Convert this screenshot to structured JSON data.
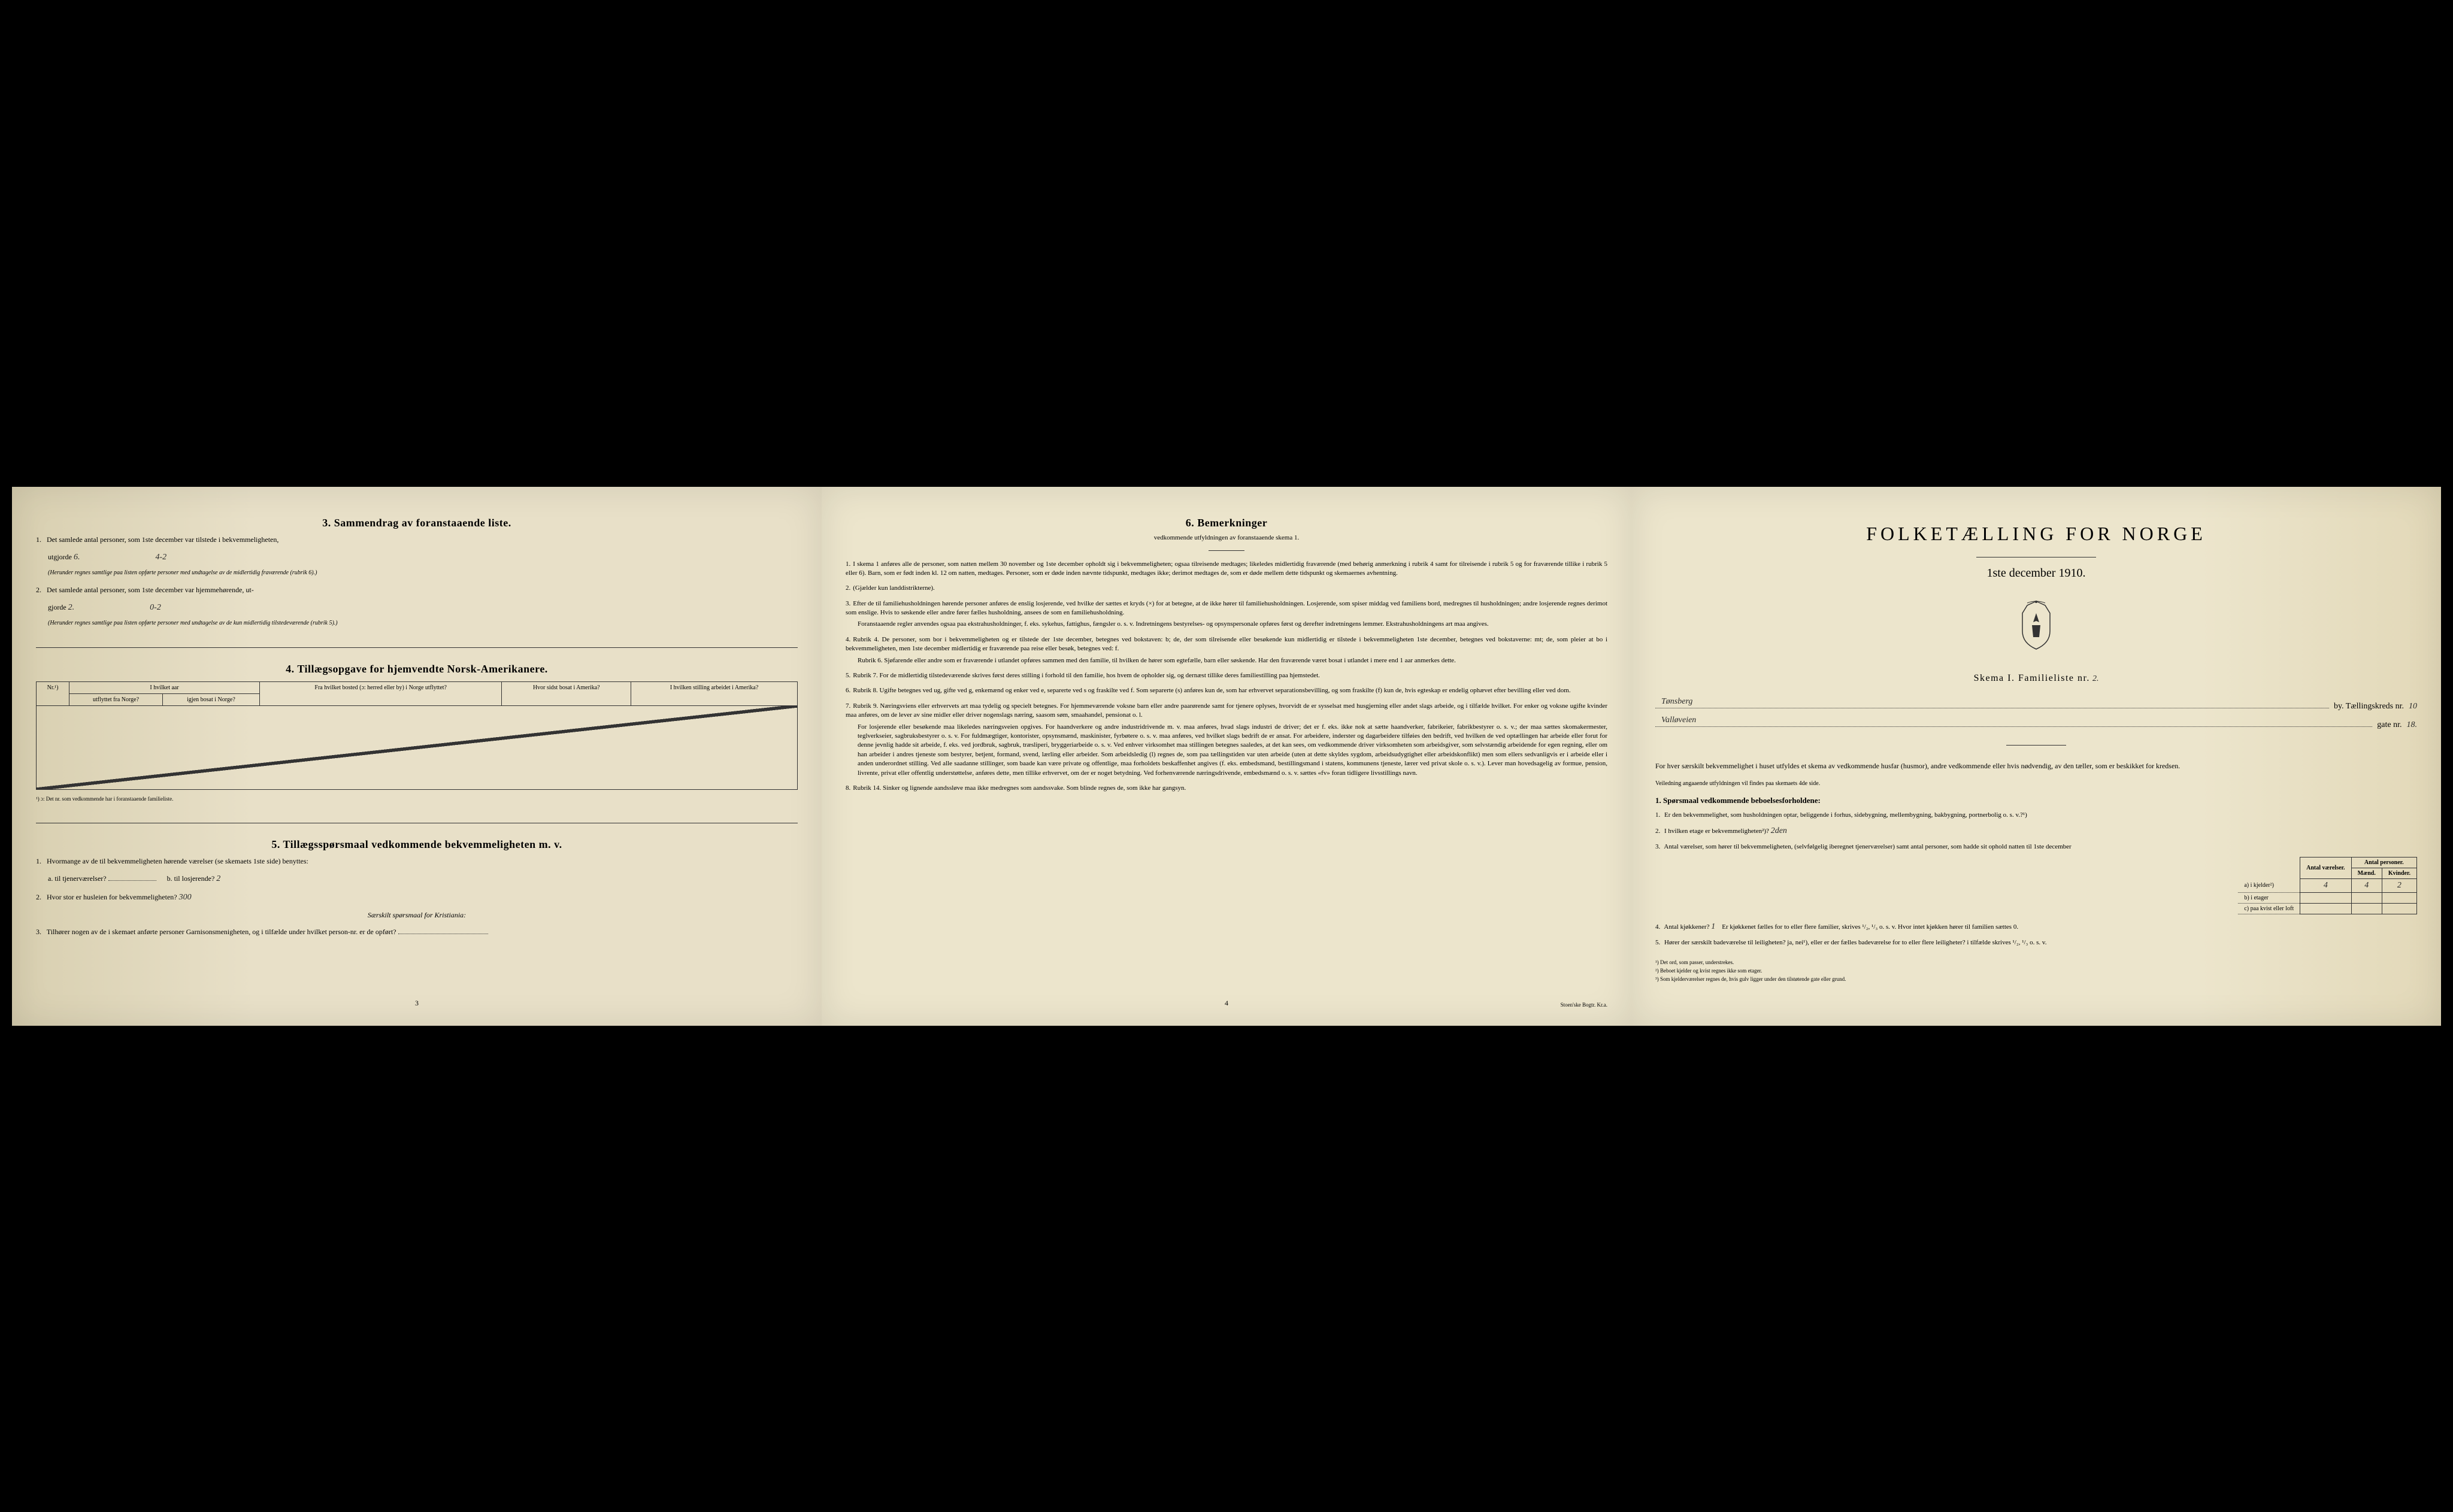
{
  "page1": {
    "section3": {
      "title": "3.   Sammendrag av foranstaaende liste.",
      "item1_text": "Det samlede antal personer, som 1ste december var tilstede i bekvemmeligheten,",
      "item1_utgjorde": "utgjorde",
      "item1_hw1": "6.",
      "item1_hw2": "4-2",
      "item1_note": "(Herunder regnes samtlige paa listen opførte personer med undtagelse av de midlertidig fraværende (rubrik 6).)",
      "item2_text": "Det samlede antal personer, som 1ste december var hjemmehørende, ut-",
      "item2_gjorde": "gjorde",
      "item2_hw1": "2.",
      "item2_hw2": "0-2",
      "item2_note": "(Herunder regnes samtlige paa listen opførte personer med undtagelse av de kun midlertidig tilstedeværende (rubrik 5).)"
    },
    "section4": {
      "title": "4.   Tillægsopgave for hjemvendte Norsk-Amerikanere.",
      "headers": {
        "nr": "Nr.¹)",
        "h1a": "I hvilket aar",
        "h1b": "utflyttet fra Norge?",
        "h1c": "igjen bosat i Norge?",
        "h2a": "Fra hvilket bosted (ɔ: herred eller by) i Norge utflyttet?",
        "h3a": "Hvor sidst bosat i Amerika?",
        "h4a": "I hvilken stilling arbeidet i Amerika?"
      },
      "footnote": "¹) ɔ: Det nr. som vedkommende har i foranstaaende familieliste."
    },
    "section5": {
      "title": "5.   Tillægsspørsmaal vedkommende bekvemmeligheten m. v.",
      "q1": "Hvormange av de til bekvemmeligheten hørende værelser (se skemaets 1ste side) benyttes:",
      "q1a": "a. til tjenerværelser?",
      "q1b": "b. til losjerende?",
      "q1b_hw": "2",
      "q2": "Hvor stor er husleien for bekvemmeligheten?",
      "q2_hw": "300",
      "q_kristiania": "Særskilt spørsmaal for Kristiania:",
      "q3": "Tilhører nogen av de i skemaet anførte personer Garnisonsmenigheten, og i tilfælde under hvilket person-nr. er de opført?"
    },
    "page_number": "3"
  },
  "page2": {
    "title": "6.   Bemerkninger",
    "subtitle": "vedkommende utfyldningen av foranstaaende skema 1.",
    "items": [
      {
        "num": "1.",
        "text": "I skema 1 anføres alle de personer, som natten mellem 30 november og 1ste december opholdt sig i bekvemmeligheten; ogsaa tilreisende medtages; likeledes midlertidig fraværende (med behørig anmerkning i rubrik 4 samt for tilreisende i rubrik 5 og for fraværende tillike i rubrik 5 eller 6). Barn, som er født inden kl. 12 om natten, medtages. Personer, som er døde inden nævnte tidspunkt, medtages ikke; derimot medtages de, som er døde mellem dette tidspunkt og skemaernes avhentning."
      },
      {
        "num": "2.",
        "text": "(Gjælder kun landdistrikterne)."
      },
      {
        "num": "3.",
        "text": "Efter de til familiehusholdningen hørende personer anføres de enslig losjerende, ved hvilke der sættes et kryds (×) for at betegne, at de ikke hører til familiehusholdningen. Losjerende, som spiser middag ved familiens bord, medregnes til husholdningen; andre losjerende regnes derimot som enslige. Hvis to søskende eller andre fører fælles husholdning, ansees de som en familiehusholdning.",
        "sub": "Foranstaaende regler anvendes ogsaa paa ekstrahusholdninger, f. eks. sykehus, fattighus, fængsler o. s. v. Indretningens bestyrelses- og opsynspersonale opføres først og derefter indretningens lemmer. Ekstrahusholdningens art maa angives."
      },
      {
        "num": "4.",
        "text": "Rubrik 4. De personer, som bor i bekvemmeligheten og er tilstede der 1ste december, betegnes ved bokstaven: b; de, der som tilreisende eller besøkende kun midlertidig er tilstede i bekvemmeligheten 1ste december, betegnes ved bokstaverne: mt; de, som pleier at bo i bekvemmeligheten, men 1ste december midlertidig er fraværende paa reise eller besøk, betegnes ved: f.",
        "sub": "Rubrik 6. Sjøfarende eller andre som er fraværende i utlandet opføres sammen med den familie, til hvilken de hører som egtefælle, barn eller søskende. Har den fraværende været bosat i utlandet i mere end 1 aar anmerkes dette."
      },
      {
        "num": "5.",
        "text": "Rubrik 7. For de midlertidig tilstedeværende skrives først deres stilling i forhold til den familie, hos hvem de opholder sig, og dernæst tillike deres familiestilling paa hjemstedet."
      },
      {
        "num": "6.",
        "text": "Rubrik 8. Ugifte betegnes ved ug, gifte ved g, enkemænd og enker ved e, separerte ved s og fraskilte ved f. Som separerte (s) anføres kun de, som har erhvervet separationsbevilling, og som fraskilte (f) kun de, hvis egteskap er endelig ophævet efter bevilling eller ved dom."
      },
      {
        "num": "7.",
        "text": "Rubrik 9. Næringsviens eller erhvervets art maa tydelig og specielt betegnes. For hjemmeværende voksne barn eller andre paarørende samt for tjenere oplyses, hvorvidt de er sysselsat med husgjerning eller andet slags arbeide, og i tilfælde hvilket. For enker og voksne ugifte kvinder maa anføres, om de lever av sine midler eller driver nogenslags næring, saasom søm, smaahandel, pensionat o. l.",
        "sub": "For losjerende eller besøkende maa likeledes næringsveien opgives. For haandverkere og andre industridrivende m. v. maa anføres, hvad slags industri de driver; det er f. eks. ikke nok at sætte haandverker, fabrikeier, fabrikbestyrer o. s. v.; der maa sættes skomakermester, teglverkseier, sagbruksbestyrer o. s. v. For fuldmægtiger, kontorister, opsynsmænd, maskinister, fyrbøtere o. s. v. maa anføres, ved hvilket slags bedrift de er ansat. For arbeidere, inderster og dagarbeidere tilføies den bedrift, ved hvilken de ved optællingen har arbeide eller forut for denne jevnlig hadde sit arbeide, f. eks. ved jordbruk, sagbruk, træsliperi, bryggeriarbeide o. s. v. Ved enhver virksomhet maa stillingen betegnes saaledes, at det kan sees, om vedkommende driver virksomheten som arbeidsgiver, som selvstændig arbeidende for egen regning, eller om han arbeider i andres tjeneste som bestyrer, betjent, formand, svend, lærling eller arbeider. Som arbeidsledig (l) regnes de, som paa tællingstiden var uten arbeide (uten at dette skyldes sygdom, arbeidsudygtighet eller arbeidskonflikt) men som ellers sedvanligvis er i arbeide eller i anden underordnet stilling. Ved alle saadanne stillinger, som baade kan være private og offentlige, maa forholdets beskaffenhet angives (f. eks. embedsmand, bestillingsmand i statens, kommunens tjeneste, lærer ved privat skole o. s. v.). Lever man hovedsagelig av formue, pension, livrente, privat eller offentlig understøttelse, anføres dette, men tillike erhvervet, om der er noget betydning. Ved forhenværende næringsdrivende, embedsmænd o. s. v. sættes «fv» foran tidligere livsstillings navn."
      },
      {
        "num": "8.",
        "text": "Rubrik 14. Sinker og lignende aandssløve maa ikke medregnes som aandssvake. Som blinde regnes de, som ikke har gangsyn."
      }
    ],
    "page_number": "4",
    "printer": "Stoen'ske Bogtr. Kr.a."
  },
  "page3": {
    "main_title": "FOLKETÆLLING FOR NORGE",
    "date": "1ste december 1910.",
    "schema": "Skema I.   Familieliste nr.",
    "schema_hw": "2.",
    "city_hw": "Tønsberg",
    "city_suffix": "by.  Tællingskreds nr.",
    "kreds_hw": "10",
    "street_hw": "Valløveien",
    "gate": "gate nr.",
    "gate_hw": "18.",
    "intro1": "For hver særskilt bekvemmelighet i huset utfyldes et skema av vedkommende husfar (husmor), andre vedkommende eller hvis nødvendig, av den tæller, som er beskikket for kredsen.",
    "intro2": "Veiledning angaaende utfyldningen vil findes paa skemaets 4de side.",
    "sec1_title": "1. Spørsmaal vedkommende beboelsesforholdene:",
    "q1": "Er den bekvemmelighet, som husholdningen optar, beliggende i forhus, sidebygning, mellembygning, bakbygning, portnerbolig o. s. v.?¹)",
    "q2": "I hvilken etage er bekvemmeligheten²)?",
    "q2_hw": "2den",
    "q3": "Antal værelser, som hører til bekvemmeligheten, (selvfølgelig iberegnet tjenerværelser) samt antal personer, som hadde sit ophold natten til 1ste december",
    "table": {
      "h_vaer": "Antal værelser.",
      "h_pers": "Antal personer.",
      "h_mand": "Mænd.",
      "h_kvin": "Kvinder.",
      "row_labels": [
        "a) i kjelder²)",
        "b) i etager",
        "c) paa kvist eller loft"
      ],
      "r1": [
        "4",
        "4",
        "2"
      ]
    },
    "q4": "Antal kjøkkener?",
    "q4_hw": "1",
    "q4_rest": "Er kjøkkenet fælles for to eller flere familier, skrives ¹/₂, ¹/₃ o. s. v. Hvor intet kjøkken hører til familien sættes 0.",
    "q5": "Hører der særskilt badeværelse til leiligheten? ja, nei¹), eller er der fælles badeværelse for to eller flere leiligheter? i tilfælde skrives ¹/₂, ¹/₃ o. s. v.",
    "footnotes": [
      "¹) Det ord, som passer, understrekes.",
      "²) Beboet kjelder og kvist regnes ikke som etager.",
      "³) Som kjelderværelser regnes de, hvis gulv ligger under den tilstøtende gate eller grund."
    ]
  },
  "colors": {
    "paper": "#e8e0c8",
    "ink": "#1a1a1a",
    "handwriting": "#2a2a2a"
  }
}
